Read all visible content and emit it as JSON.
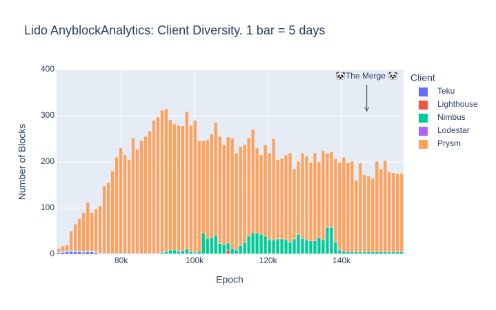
{
  "chart_data": {
    "type": "bar",
    "stacked": true,
    "title": "Lido AnyblockAnalytics: Client Diversity. 1 bar = 5 days",
    "x_label": "Epoch",
    "y_label": "Number of Blocks",
    "legend_title": "Client",
    "legend_position": "right",
    "x": [
      63000,
      64125,
      65250,
      66375,
      67500,
      68625,
      69750,
      70875,
      72000,
      73125,
      74250,
      75375,
      76500,
      77625,
      78750,
      79875,
      81000,
      82125,
      83250,
      84375,
      85500,
      86625,
      87750,
      88875,
      90000,
      91125,
      92250,
      93375,
      94500,
      95625,
      96750,
      97875,
      99000,
      100125,
      101250,
      102375,
      103500,
      104625,
      105750,
      106875,
      108000,
      109125,
      110250,
      111375,
      112500,
      113625,
      114750,
      115875,
      117000,
      118125,
      119250,
      120375,
      121500,
      122625,
      123750,
      124875,
      126000,
      127125,
      128250,
      129375,
      130500,
      131625,
      132750,
      133875,
      135000,
      136125,
      137250,
      138375,
      139500,
      140625,
      141750,
      142875,
      144000,
      145125,
      146250,
      147375,
      148500,
      149625,
      150750,
      151875,
      153000,
      154125,
      155250,
      156375
    ],
    "series": [
      {
        "name": "Teku",
        "color": "#636efa",
        "values": [
          3,
          4,
          5,
          6,
          5,
          5,
          4,
          5,
          5,
          3,
          1,
          1,
          1,
          1,
          1,
          1,
          1,
          1,
          1,
          1,
          1,
          1,
          1,
          1,
          1,
          1,
          1,
          1,
          1,
          1,
          1,
          1,
          1,
          1,
          1,
          1,
          1,
          1,
          1,
          1,
          1,
          1,
          1,
          1,
          1,
          1,
          1,
          1,
          1,
          1,
          1,
          1,
          1,
          1,
          1,
          1,
          1,
          1,
          1,
          1,
          1,
          1,
          1,
          1,
          1,
          1,
          1,
          1,
          1,
          1,
          1,
          1,
          1,
          1,
          1,
          1,
          1,
          1,
          1,
          1,
          1,
          1,
          1,
          1
        ]
      },
      {
        "name": "Lighthouse",
        "color": "#ef553b",
        "values": [
          0,
          0,
          0,
          0,
          0,
          0,
          0,
          0,
          0,
          0,
          0,
          0,
          0,
          0,
          0,
          0,
          0,
          0,
          0,
          0,
          0,
          0,
          0,
          0,
          0,
          0,
          0,
          0,
          0,
          0,
          0,
          0,
          0,
          0,
          0,
          0,
          0,
          0,
          0,
          0,
          0,
          8,
          0,
          0,
          0,
          0,
          0,
          0,
          0,
          0,
          0,
          0,
          0,
          0,
          0,
          0,
          0,
          0,
          0,
          0,
          0,
          0,
          0,
          0,
          0,
          0,
          0,
          0,
          0,
          0,
          0,
          0,
          0,
          0,
          0,
          0,
          0,
          0,
          0,
          0,
          0,
          0,
          0,
          0
        ]
      },
      {
        "name": "Nimbus",
        "color": "#00cc96",
        "values": [
          1,
          1,
          1,
          1,
          1,
          1,
          1,
          1,
          1,
          1,
          1,
          1,
          1,
          1,
          1,
          1,
          1,
          1,
          1,
          1,
          1,
          1,
          1,
          1,
          1,
          3,
          4,
          8,
          8,
          5,
          7,
          10,
          5,
          3,
          5,
          45,
          33,
          35,
          40,
          22,
          20,
          15,
          12,
          8,
          18,
          25,
          38,
          45,
          45,
          42,
          38,
          30,
          30,
          32,
          32,
          30,
          25,
          32,
          42,
          33,
          30,
          28,
          28,
          35,
          30,
          57,
          57,
          25,
          8,
          5,
          4,
          4,
          4,
          4,
          4,
          4,
          4,
          4,
          4,
          4,
          4,
          4,
          4,
          4
        ]
      },
      {
        "name": "Lodestar",
        "color": "#ab63fa",
        "values": [
          1,
          1,
          1,
          1,
          1,
          1,
          1,
          1,
          1,
          1,
          0,
          0,
          0,
          0,
          0,
          0,
          0,
          0,
          0,
          0,
          0,
          0,
          0,
          0,
          0,
          0,
          0,
          0,
          0,
          0,
          0,
          0,
          0,
          0,
          0,
          0,
          0,
          0,
          0,
          0,
          0,
          0,
          0,
          0,
          0,
          0,
          0,
          0,
          0,
          0,
          0,
          0,
          0,
          0,
          0,
          0,
          0,
          0,
          0,
          0,
          0,
          0,
          0,
          0,
          0,
          0,
          0,
          0,
          0,
          0,
          0,
          0,
          0,
          0,
          0,
          0,
          0,
          0,
          0,
          0,
          0,
          0,
          0,
          0
        ]
      },
      {
        "name": "Prysm",
        "color": "#ffa15a",
        "values": [
          7,
          12,
          13,
          42,
          58,
          70,
          84,
          105,
          83,
          93,
          103,
          146,
          153,
          178,
          208,
          228,
          213,
          203,
          250,
          225,
          244,
          253,
          265,
          288,
          295,
          308,
          310,
          282,
          273,
          273,
          270,
          298,
          273,
          286,
          240,
          200,
          214,
          224,
          244,
          232,
          216,
          230,
          239,
          210,
          214,
          211,
          213,
          224,
          184,
          172,
          198,
          188,
          219,
          172,
          174,
          184,
          193,
          152,
          158,
          185,
          181,
          170,
          190,
          164,
          193,
          161,
          164,
          181,
          190,
          204,
          194,
          196,
          155,
          192,
          167,
          164,
          159,
          196,
          180,
          198,
          173,
          171,
          170,
          170
        ]
      }
    ],
    "xlim": [
      62400,
      156900
    ],
    "xticks": [
      {
        "value": 80000,
        "label": "80k"
      },
      {
        "value": 100000,
        "label": "100k"
      },
      {
        "value": 120000,
        "label": "120k"
      },
      {
        "value": 140000,
        "label": "140k"
      }
    ],
    "ylim": [
      0,
      400
    ],
    "yticks": [
      0,
      100,
      200,
      300,
      400
    ],
    "grid": true,
    "annotations": [
      {
        "text": "🐼The Merge 🐼",
        "x": 146875,
        "y": 310
      }
    ]
  }
}
